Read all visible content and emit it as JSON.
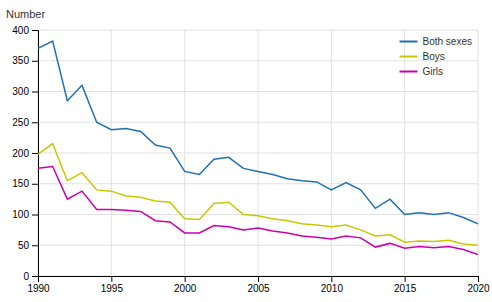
{
  "chart_data": {
    "type": "line",
    "ylabel": "Number",
    "x": [
      1990,
      1991,
      1992,
      1993,
      1994,
      1995,
      1996,
      1997,
      1998,
      1999,
      2000,
      2001,
      2002,
      2003,
      2004,
      2005,
      2006,
      2007,
      2008,
      2009,
      2010,
      2011,
      2012,
      2013,
      2014,
      2015,
      2016,
      2017,
      2018,
      2019,
      2020
    ],
    "series": [
      {
        "name": "Both sexes",
        "color": "#2070b4",
        "values": [
          370,
          382,
          285,
          310,
          250,
          238,
          240,
          235,
          213,
          208,
          170,
          165,
          190,
          193,
          175,
          170,
          165,
          158,
          155,
          153,
          140,
          152,
          140,
          110,
          125,
          100,
          103,
          100,
          103,
          95,
          85
        ]
      },
      {
        "name": "Boys",
        "color": "#c8c800",
        "values": [
          198,
          215,
          155,
          168,
          140,
          138,
          130,
          128,
          122,
          120,
          93,
          92,
          118,
          120,
          100,
          98,
          93,
          90,
          85,
          83,
          80,
          83,
          75,
          65,
          67,
          55,
          57,
          56,
          58,
          52,
          50
        ]
      },
      {
        "name": "Girls",
        "color": "#cc00aa",
        "values": [
          175,
          178,
          125,
          138,
          108,
          108,
          107,
          105,
          90,
          88,
          70,
          70,
          82,
          80,
          75,
          78,
          73,
          70,
          65,
          63,
          60,
          65,
          62,
          47,
          53,
          45,
          48,
          46,
          48,
          43,
          35
        ]
      }
    ],
    "xlim": [
      1990,
      2020
    ],
    "ylim": [
      0,
      400
    ],
    "xticks": [
      1990,
      1995,
      2000,
      2005,
      2010,
      2015,
      2020
    ],
    "yticks": [
      0,
      50,
      100,
      150,
      200,
      250,
      300,
      350,
      400
    ],
    "grid": true,
    "legend": "upper right"
  }
}
